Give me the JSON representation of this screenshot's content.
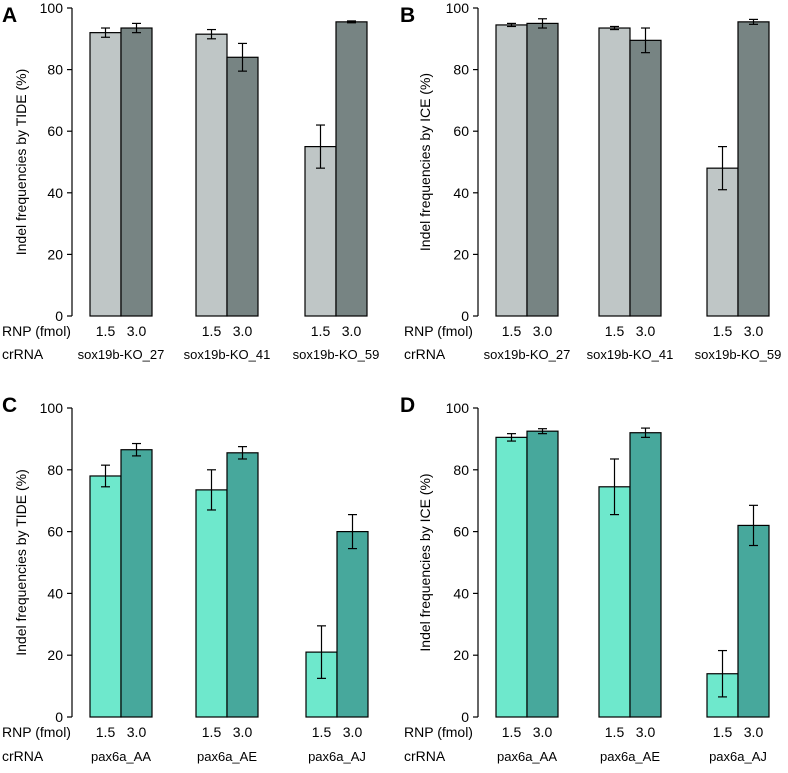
{
  "chart_data": [
    {
      "panel": "A",
      "type": "bar",
      "ylabel": "Indel frequencies by TIDE (%)",
      "ylim": [
        0,
        100
      ],
      "yticks": [
        0,
        20,
        40,
        60,
        80,
        100
      ],
      "row_labels": {
        "rnp": "RNP (fmol)",
        "crrna": "crRNA"
      },
      "dose_labels": [
        "1.5",
        "3.0"
      ],
      "colors": {
        "low": "#bfc6c6",
        "high": "#778483"
      },
      "groups": [
        {
          "crrna": "sox19b-KO_27",
          "values": [
            92,
            93.5
          ],
          "errors": [
            1.5,
            1.5
          ]
        },
        {
          "crrna": "sox19b-KO_41",
          "values": [
            91.5,
            84
          ],
          "errors": [
            1.5,
            4.5
          ]
        },
        {
          "crrna": "sox19b-KO_59",
          "values": [
            55,
            95.5
          ],
          "errors": [
            7,
            0.3
          ]
        }
      ]
    },
    {
      "panel": "B",
      "type": "bar",
      "ylabel": "Indel frequencies by ICE (%)",
      "ylim": [
        0,
        100
      ],
      "yticks": [
        0,
        20,
        40,
        60,
        80,
        100
      ],
      "row_labels": {
        "rnp": "RNP (fmol)",
        "crrna": "crRNA"
      },
      "dose_labels": [
        "1.5",
        "3.0"
      ],
      "colors": {
        "low": "#bfc6c6",
        "high": "#778483"
      },
      "groups": [
        {
          "crrna": "sox19b-KO_27",
          "values": [
            94.5,
            95
          ],
          "errors": [
            0.5,
            1.5
          ]
        },
        {
          "crrna": "sox19b-KO_41",
          "values": [
            93.5,
            89.5
          ],
          "errors": [
            0.5,
            4
          ]
        },
        {
          "crrna": "sox19b-KO_59",
          "values": [
            48,
            95.5
          ],
          "errors": [
            7,
            0.8
          ]
        }
      ]
    },
    {
      "panel": "C",
      "type": "bar",
      "ylabel": "Indel frequencies by TIDE (%)",
      "ylim": [
        0,
        100
      ],
      "yticks": [
        0,
        20,
        40,
        60,
        80,
        100
      ],
      "row_labels": {
        "rnp": "RNP (fmol)",
        "crrna": "crRNA"
      },
      "dose_labels": [
        "1.5",
        "3.0"
      ],
      "colors": {
        "low": "#6ee8cc",
        "high": "#47a89c"
      },
      "groups": [
        {
          "crrna": "pax6a_AA",
          "values": [
            78,
            86.5
          ],
          "errors": [
            3.5,
            2
          ]
        },
        {
          "crrna": "pax6a_AE",
          "values": [
            73.5,
            85.5
          ],
          "errors": [
            6.5,
            2
          ]
        },
        {
          "crrna": "pax6a_AJ",
          "values": [
            21,
            60
          ],
          "errors": [
            8.5,
            5.5
          ]
        }
      ]
    },
    {
      "panel": "D",
      "type": "bar",
      "ylabel": "Indel frequencies by ICE (%)",
      "ylim": [
        0,
        100
      ],
      "yticks": [
        0,
        20,
        40,
        60,
        80,
        100
      ],
      "row_labels": {
        "rnp": "RNP (fmol)",
        "crrna": "crRNA"
      },
      "dose_labels": [
        "1.5",
        "3.0"
      ],
      "colors": {
        "low": "#6ee8cc",
        "high": "#47a89c"
      },
      "groups": [
        {
          "crrna": "pax6a_AA",
          "values": [
            90.5,
            92.5
          ],
          "errors": [
            1.2,
            0.8
          ]
        },
        {
          "crrna": "pax6a_AE",
          "values": [
            74.5,
            92
          ],
          "errors": [
            9,
            1.5
          ]
        },
        {
          "crrna": "pax6a_AJ",
          "values": [
            14,
            62
          ],
          "errors": [
            7.5,
            6.5
          ]
        }
      ]
    }
  ]
}
